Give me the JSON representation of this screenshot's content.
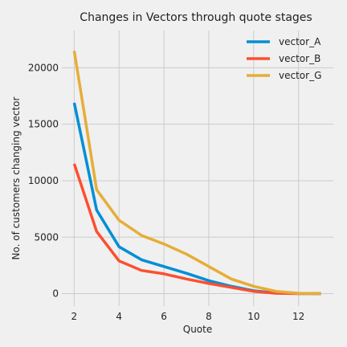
{
  "chart_data": {
    "type": "line",
    "title": "Changes in Vectors through quote stages",
    "xlabel": "Quote",
    "ylabel": "No. of customers changing vector",
    "xlim": [
      1.45,
      13.55
    ],
    "ylim": [
      -1100,
      23300
    ],
    "x_ticks": [
      2,
      4,
      6,
      8,
      10,
      12
    ],
    "y_ticks": [
      0,
      5000,
      10000,
      15000,
      20000
    ],
    "grid": true,
    "legend_position": "top-right",
    "x": [
      2,
      3,
      4,
      5,
      6,
      7,
      8,
      9,
      10,
      11,
      12,
      13
    ],
    "series": [
      {
        "name": "vector_A",
        "color": "#008fd5",
        "values": [
          16900,
          7400,
          4150,
          3000,
          2400,
          1800,
          1150,
          650,
          250,
          50,
          10,
          0
        ]
      },
      {
        "name": "vector_B",
        "color": "#fc4f30",
        "values": [
          11500,
          5500,
          2900,
          2050,
          1750,
          1300,
          900,
          550,
          200,
          30,
          5,
          0
        ]
      },
      {
        "name": "vector_G",
        "color": "#e5ae38",
        "values": [
          21500,
          9200,
          6500,
          5150,
          4400,
          3500,
          2400,
          1300,
          650,
          200,
          30,
          10
        ]
      }
    ]
  }
}
